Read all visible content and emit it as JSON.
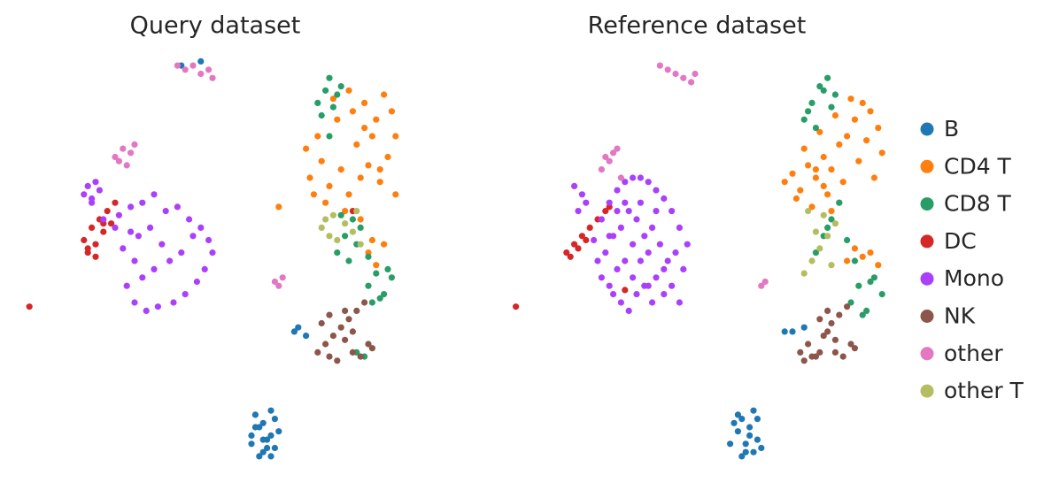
{
  "chart_data": [
    {
      "type": "scatter",
      "title": "Query dataset",
      "xlim": [
        0,
        100
      ],
      "ylim": [
        0,
        100
      ],
      "grid": false,
      "legend": "right",
      "series": [
        {
          "name": "B",
          "color": "#1f77b4",
          "x": [
            60,
            62,
            63,
            65,
            66,
            61,
            64,
            67,
            62,
            65,
            63,
            60,
            66,
            64,
            61,
            63,
            65,
            71,
            72,
            74,
            42,
            47
          ],
          "y": [
            6,
            10,
            4,
            8,
            12,
            13,
            5,
            9,
            3,
            14,
            11,
            8,
            5,
            7,
            10,
            7,
            3,
            33,
            34,
            32,
            97,
            98
          ]
        },
        {
          "name": "CD4 T",
          "color": "#ff7f0e",
          "x": [
            75,
            78,
            80,
            83,
            85,
            88,
            90,
            93,
            95,
            97,
            74,
            77,
            82,
            86,
            89,
            92,
            96,
            79,
            84,
            87,
            91,
            94,
            76,
            81,
            85,
            89,
            93,
            97,
            90,
            92,
            94,
            91,
            67,
            88
          ],
          "y": [
            70,
            74,
            68,
            72,
            66,
            70,
            73,
            69,
            75,
            80,
            77,
            80,
            84,
            86,
            88,
            84,
            86,
            64,
            62,
            78,
            80,
            90,
            66,
            89,
            91,
            82,
            72,
            66,
            52,
            49,
            54,
            55,
            63,
            60
          ]
        },
        {
          "name": "CD8 T",
          "color": "#279e68",
          "x": [
            77,
            79,
            80,
            82,
            78,
            81,
            83,
            80,
            82,
            84,
            86,
            88,
            85,
            87,
            90,
            83,
            90,
            92,
            94,
            96,
            91,
            93,
            95,
            87,
            89
          ],
          "y": [
            88,
            91,
            94,
            90,
            85,
            87,
            92,
            80,
            52,
            56,
            60,
            58,
            50,
            54,
            51,
            61,
            44,
            47,
            42,
            46,
            40,
            41,
            48,
            28,
            27
          ]
        },
        {
          "name": "DC",
          "color": "#d62728",
          "x": [
            17,
            18,
            19,
            20,
            21,
            22,
            23,
            24,
            25,
            18,
            20,
            22,
            3,
            86
          ],
          "y": [
            55,
            52,
            58,
            54,
            60,
            57,
            62,
            59,
            64,
            53,
            51,
            59,
            39,
            62
          ]
        },
        {
          "name": "Mono",
          "color": "#aa40fc",
          "x": [
            17,
            18,
            19,
            20,
            21,
            19,
            26,
            29,
            32,
            35,
            38,
            41,
            44,
            47,
            49,
            50,
            48,
            46,
            43,
            40,
            36,
            33,
            30,
            28,
            31,
            34,
            37,
            39,
            42,
            45,
            30,
            32,
            35,
            29,
            27,
            22,
            25
          ],
          "y": [
            66,
            68,
            65,
            69,
            67,
            64,
            61,
            63,
            64,
            66,
            62,
            63,
            60,
            58,
            55,
            52,
            48,
            45,
            42,
            40,
            39,
            38,
            40,
            44,
            56,
            58,
            54,
            50,
            52,
            56,
            50,
            46,
            48,
            57,
            53,
            60,
            58
          ]
        },
        {
          "name": "NK",
          "color": "#8c564b",
          "x": [
            77,
            79,
            81,
            83,
            85,
            87,
            89,
            91,
            78,
            80,
            82,
            84,
            86,
            88,
            90,
            80,
            84,
            86
          ],
          "y": [
            28,
            30,
            32,
            34,
            36,
            38,
            40,
            29,
            35,
            27,
            26,
            38,
            28,
            27,
            30,
            37,
            31,
            33
          ]
        },
        {
          "name": "other",
          "color": "#e377c2",
          "x": [
            41,
            43,
            45,
            47,
            49,
            50,
            25,
            27,
            28,
            29,
            30,
            26,
            67,
            68,
            66
          ],
          "y": [
            97,
            96,
            97,
            95,
            96,
            94,
            75,
            77,
            73,
            76,
            78,
            74,
            44,
            46,
            45
          ]
        },
        {
          "name": "other T",
          "color": "#b5bd61",
          "x": [
            78,
            79,
            80,
            81,
            82,
            84,
            86,
            87,
            88
          ],
          "y": [
            58,
            60,
            56,
            61,
            55,
            59,
            57,
            62,
            54
          ]
        }
      ]
    },
    {
      "type": "scatter",
      "title": "Reference dataset",
      "xlim": [
        0,
        100
      ],
      "ylim": [
        0,
        100
      ],
      "grid": false,
      "series": [
        {
          "color": "#1f77b4",
          "x": [
            59,
            61,
            62,
            63,
            64,
            65,
            66,
            67,
            60,
            62,
            64,
            66,
            61,
            63,
            65,
            73,
            75,
            78
          ],
          "y": [
            6,
            9,
            12,
            4,
            10,
            14,
            7,
            5,
            11,
            3,
            8,
            12,
            13,
            6,
            4,
            33,
            33,
            34
          ]
        },
        {
          "color": "#ff7f0e",
          "x": [
            73,
            75,
            77,
            79,
            81,
            83,
            85,
            87,
            89,
            91,
            93,
            95,
            97,
            98,
            76,
            80,
            84,
            88,
            92,
            96,
            78,
            82,
            86,
            90,
            94,
            89,
            91,
            93,
            95,
            97,
            85,
            87,
            83,
            81
          ],
          "y": [
            69,
            71,
            67,
            73,
            70,
            75,
            72,
            78,
            80,
            84,
            88,
            86,
            82,
            76,
            65,
            63,
            66,
            69,
            74,
            70,
            77,
            81,
            85,
            89,
            79,
            50,
            53,
            51,
            52,
            49,
            62,
            64,
            68,
            72
          ]
        },
        {
          "color": "#279e68",
          "x": [
            78,
            80,
            82,
            84,
            86,
            79,
            81,
            83,
            85,
            81,
            83,
            85,
            87,
            89,
            91,
            84,
            90,
            92,
            94,
            96,
            98,
            93,
            95
          ],
          "y": [
            84,
            88,
            92,
            94,
            90,
            86,
            82,
            91,
            87,
            52,
            56,
            60,
            64,
            55,
            50,
            58,
            40,
            44,
            38,
            46,
            42,
            37,
            45
          ]
        },
        {
          "color": "#d62728",
          "x": [
            17,
            19,
            21,
            23,
            25,
            27,
            28,
            18,
            20,
            22,
            4,
            32
          ],
          "y": [
            52,
            54,
            56,
            58,
            60,
            62,
            63,
            51,
            53,
            55,
            39,
            43
          ]
        },
        {
          "color": "#aa40fc",
          "x": [
            20,
            22,
            21,
            19,
            24,
            26,
            28,
            30,
            32,
            34,
            36,
            38,
            40,
            42,
            44,
            46,
            48,
            25,
            27,
            29,
            31,
            33,
            35,
            37,
            39,
            41,
            43,
            45,
            47,
            26,
            28,
            30,
            32,
            34,
            36,
            38,
            40,
            42,
            44,
            46,
            28,
            30,
            32,
            34,
            36,
            38,
            40,
            42,
            29,
            31,
            33,
            35,
            37,
            39
          ],
          "y": [
            62,
            64,
            66,
            68,
            55,
            60,
            64,
            67,
            69,
            70,
            70,
            69,
            67,
            65,
            62,
            58,
            54,
            50,
            52,
            56,
            58,
            62,
            60,
            56,
            58,
            54,
            50,
            52,
            48,
            46,
            44,
            48,
            50,
            46,
            50,
            44,
            46,
            42,
            44,
            40,
            56,
            62,
            64,
            54,
            64,
            52,
            62,
            48,
            42,
            40,
            38,
            42,
            44,
            40
          ]
        },
        {
          "color": "#8c564b",
          "x": [
            77,
            79,
            81,
            83,
            85,
            87,
            89,
            91,
            78,
            80,
            82,
            84,
            86,
            88,
            90,
            82,
            84,
            86
          ],
          "y": [
            28,
            30,
            27,
            32,
            35,
            37,
            39,
            29,
            26,
            27,
            28,
            33,
            28,
            27,
            30,
            36,
            38,
            31
          ]
        },
        {
          "color": "#e377c2",
          "x": [
            41,
            43,
            45,
            47,
            49,
            50,
            26,
            28,
            29,
            30,
            31,
            27,
            67,
            68
          ],
          "y": [
            97,
            96,
            95,
            94,
            93,
            95,
            72,
            74,
            76,
            77,
            70,
            75,
            44,
            45
          ]
        },
        {
          "color": "#b5bd61",
          "x": [
            78,
            80,
            82,
            84,
            86,
            79,
            81,
            83,
            85
          ],
          "y": [
            47,
            50,
            53,
            56,
            59,
            62,
            57,
            61,
            49
          ]
        }
      ]
    }
  ]
}
